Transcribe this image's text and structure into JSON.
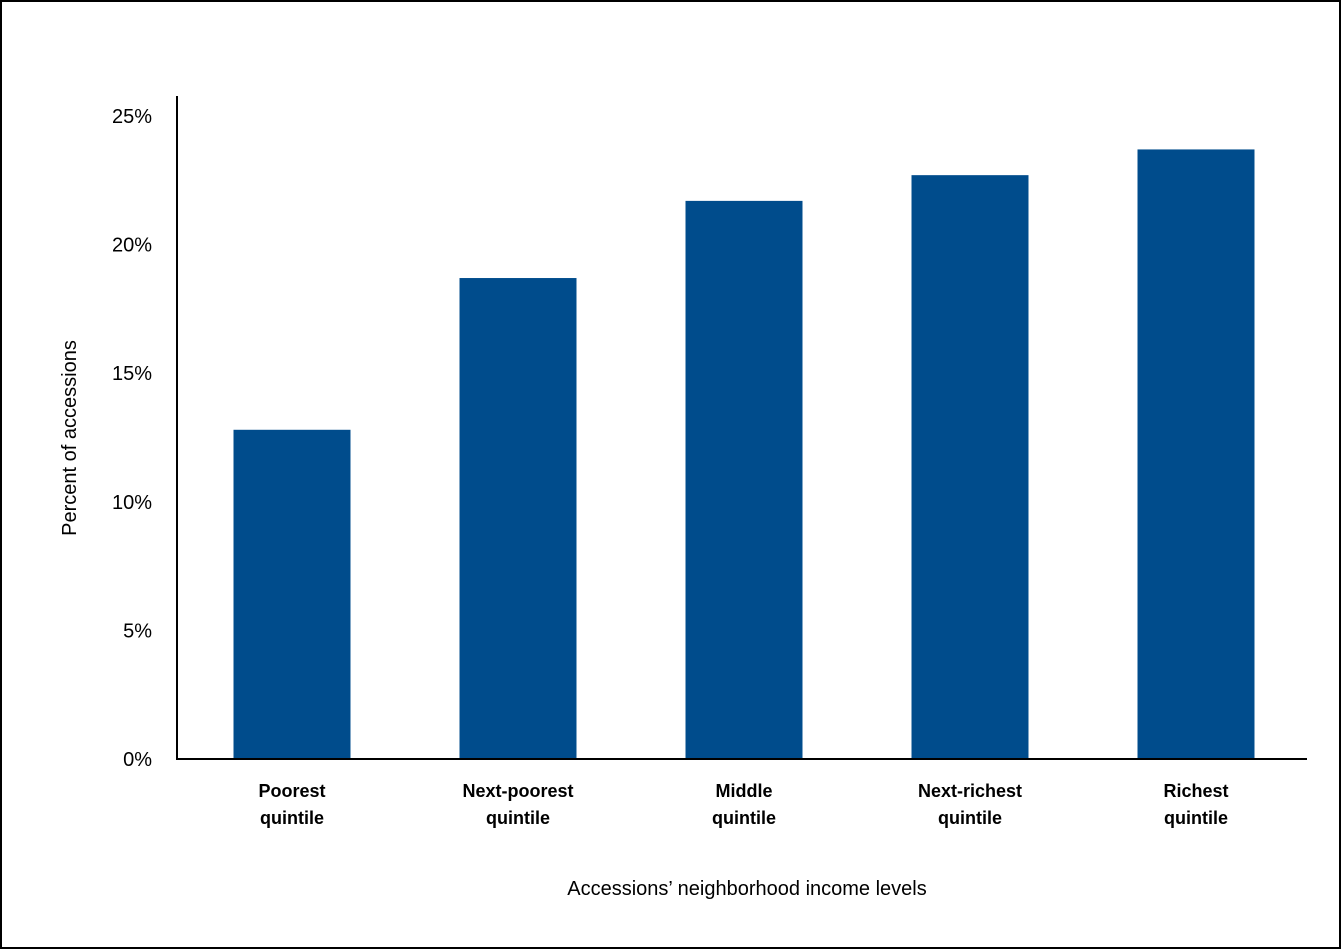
{
  "chart_data": {
    "type": "bar",
    "categories": [
      [
        "Poorest",
        "quintile"
      ],
      [
        "Next-poorest",
        "quintile"
      ],
      [
        "Middle",
        "quintile"
      ],
      [
        "Next-richest",
        "quintile"
      ],
      [
        "Richest",
        "quintile"
      ]
    ],
    "values": [
      12.8,
      18.7,
      21.7,
      22.7,
      23.7
    ],
    "ylim": [
      0,
      25
    ],
    "yticks": [
      0,
      5,
      10,
      15,
      20,
      25
    ],
    "ytick_format": "%",
    "xlabel": "Accessions’ neighborhood income levels",
    "ylabel": "Percent of accessions",
    "grid": false,
    "legend": "none",
    "bar_color": "#004c8c",
    "axis_color": "#000000"
  }
}
